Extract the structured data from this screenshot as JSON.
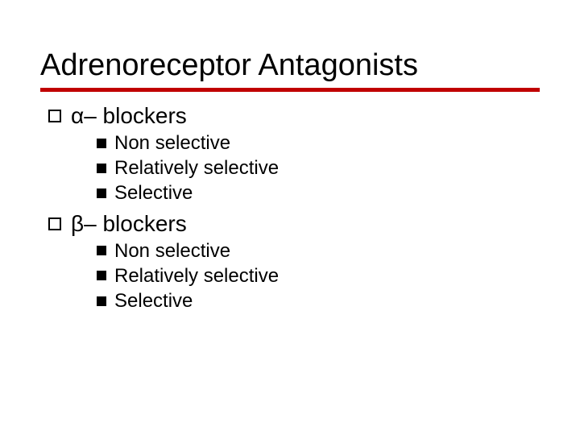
{
  "title": "Adrenoreceptor Antagonists",
  "rule_color": "#c00000",
  "background_color": "#ffffff",
  "text_color": "#000000",
  "title_fontsize": 38,
  "level1_fontsize": 28,
  "level2_fontsize": 24,
  "sections": [
    {
      "label": "α– blockers",
      "items": [
        "Non selective",
        "Relatively selective",
        "Selective"
      ]
    },
    {
      "label": "β– blockers",
      "items": [
        "Non selective",
        "Relatively selective",
        "Selective"
      ]
    }
  ]
}
